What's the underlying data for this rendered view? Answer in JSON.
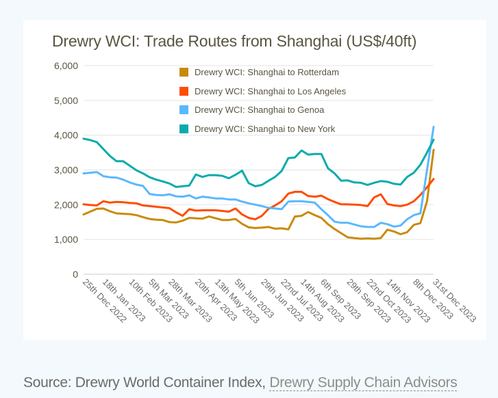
{
  "title": "Drewry WCI: Trade Routes from Shanghai (US$/40ft)",
  "source": {
    "prefix": "Source: Drewry World Container Index, ",
    "link_label": "Drewry Supply Chain Advisors"
  },
  "legend": [
    {
      "label": "Drewry WCI: Shanghai to Rotterdam",
      "color": "#c98a0a"
    },
    {
      "label": "Drewry WCI: Shanghai to Los Angeles",
      "color": "#ff4d00"
    },
    {
      "label": "Drewry WCI: Shanghai to Genoa",
      "color": "#5ab8ff"
    },
    {
      "label": "Drewry WCI: Shanghai to New York",
      "color": "#0aabad"
    }
  ],
  "chart_data": {
    "type": "line",
    "title": "Drewry WCI: Trade Routes from Shanghai (US$/40ft)",
    "xlabel": "",
    "ylabel": "US$/40ft",
    "ylim": [
      0,
      6000
    ],
    "yticks": [
      "0",
      "1,000",
      "2,000",
      "3,000",
      "4,000",
      "5,000",
      "6,000"
    ],
    "grid": true,
    "legend_position": "top-inside",
    "x_tick_labels": [
      "25th Dec 2022",
      "18th Jan 2023",
      "10th Feb 2023",
      "5th Mar 2023",
      "28th Mar 2023",
      "20th Apr 2023",
      "13th May 2023",
      "5th Jun 2023",
      "29th Jun 2023",
      "22nd Jul 2023",
      "14th Aug 2023",
      "6th Sep 2023",
      "29th Sep 2023",
      "22nd Oct 2023",
      "14th Nov 2023",
      "8th Dec 2023",
      "31st Dec 2023"
    ],
    "x_tick_index": [
      0,
      3,
      7,
      10,
      13,
      17,
      20,
      23,
      27,
      30,
      33,
      36,
      40,
      43,
      46,
      50,
      53
    ],
    "series": [
      {
        "name": "Drewry WCI: Shanghai to Rotterdam",
        "color": "#c98a0a",
        "values": [
          1720,
          1800,
          1880,
          1890,
          1810,
          1750,
          1740,
          1730,
          1700,
          1640,
          1590,
          1570,
          1560,
          1500,
          1490,
          1540,
          1620,
          1610,
          1600,
          1660,
          1610,
          1560,
          1560,
          1590,
          1450,
          1350,
          1330,
          1340,
          1360,
          1310,
          1320,
          1290,
          1660,
          1680,
          1790,
          1700,
          1620,
          1440,
          1300,
          1180,
          1060,
          1040,
          1020,
          1030,
          1020,
          1040,
          1280,
          1230,
          1150,
          1210,
          1420,
          1470,
          2100,
          3580
        ]
      },
      {
        "name": "Drewry WCI: Shanghai to Los Angeles",
        "color": "#ff4d00",
        "values": [
          2010,
          1990,
          1980,
          2100,
          2060,
          2080,
          2070,
          2050,
          2040,
          1980,
          1960,
          1940,
          1920,
          1900,
          1780,
          1680,
          1870,
          1830,
          1840,
          1840,
          1840,
          1820,
          1800,
          1890,
          1720,
          1620,
          1580,
          1680,
          1880,
          1980,
          2100,
          2320,
          2370,
          2370,
          2250,
          2230,
          2260,
          2160,
          2080,
          2010,
          2010,
          2000,
          1990,
          1960,
          2210,
          2300,
          2020,
          1980,
          1960,
          2000,
          2100,
          2280,
          2500,
          2740
        ]
      },
      {
        "name": "Drewry WCI: Shanghai to Genoa",
        "color": "#5ab8ff",
        "values": [
          2900,
          2920,
          2940,
          2820,
          2790,
          2780,
          2720,
          2640,
          2580,
          2540,
          2310,
          2280,
          2270,
          2300,
          2240,
          2230,
          2270,
          2180,
          2230,
          2210,
          2180,
          2180,
          2150,
          2150,
          2090,
          2040,
          2000,
          1960,
          1910,
          1890,
          1870,
          2090,
          2100,
          2100,
          2080,
          2060,
          1870,
          1700,
          1510,
          1480,
          1480,
          1430,
          1380,
          1360,
          1360,
          1480,
          1440,
          1370,
          1400,
          1580,
          1700,
          1750,
          3000,
          4240
        ]
      },
      {
        "name": "Drewry WCI: Shanghai to New York",
        "color": "#0aabad",
        "values": [
          3900,
          3860,
          3800,
          3600,
          3400,
          3250,
          3250,
          3120,
          2990,
          2900,
          2790,
          2720,
          2670,
          2610,
          2510,
          2530,
          2550,
          2870,
          2800,
          2850,
          2850,
          2830,
          2760,
          2860,
          2980,
          2620,
          2530,
          2570,
          2690,
          2800,
          2970,
          3340,
          3360,
          3560,
          3440,
          3460,
          3460,
          3050,
          2900,
          2690,
          2700,
          2640,
          2630,
          2570,
          2630,
          2680,
          2660,
          2600,
          2580,
          2800,
          2920,
          3150,
          3500,
          3870
        ]
      }
    ]
  }
}
